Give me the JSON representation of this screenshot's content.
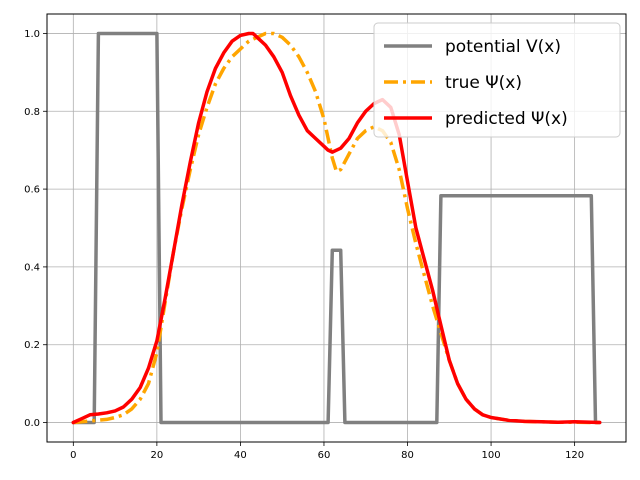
{
  "chart_data": {
    "type": "line",
    "title": "",
    "xlabel": "",
    "ylabel": "",
    "xlim": [
      -6.3,
      132.3
    ],
    "ylim": [
      -0.05,
      1.05
    ],
    "xticks": [
      0,
      20,
      40,
      60,
      80,
      100,
      120
    ],
    "yticks": [
      0.0,
      0.2,
      0.4,
      0.6,
      0.8,
      1.0
    ],
    "xtick_labels": [
      "0",
      "20",
      "40",
      "60",
      "80",
      "100",
      "120"
    ],
    "ytick_labels": [
      "0.0",
      "0.2",
      "0.4",
      "0.6",
      "0.8",
      "1.0"
    ],
    "grid": true,
    "legend_position": "upper right",
    "series": [
      {
        "name": "potential V(x)",
        "color": "#808080",
        "style": "solid",
        "x": [
          0,
          5,
          6,
          20,
          21,
          61,
          62,
          64,
          65,
          87,
          88,
          124,
          125,
          126
        ],
        "y": [
          0,
          0,
          1.0,
          1.0,
          0,
          0,
          0.443,
          0.443,
          0,
          0,
          0.583,
          0.583,
          0,
          0
        ]
      },
      {
        "name": "true Ψ(x)",
        "color": "#ffa500",
        "style": "dashdot",
        "x": [
          0,
          4,
          8,
          10,
          12,
          14,
          16,
          18,
          20,
          22,
          24,
          26,
          28,
          30,
          32,
          34,
          36,
          38,
          40,
          42,
          44,
          46,
          48,
          50,
          52,
          54,
          56,
          58,
          60,
          62,
          63,
          64,
          66,
          68,
          70,
          72,
          74,
          76,
          78,
          80,
          82,
          84,
          86,
          88,
          90,
          92,
          94,
          96,
          98,
          100,
          104,
          108,
          112,
          116,
          120,
          124,
          126
        ],
        "y": [
          0.0,
          0.004,
          0.008,
          0.013,
          0.02,
          0.035,
          0.06,
          0.1,
          0.18,
          0.31,
          0.44,
          0.55,
          0.65,
          0.74,
          0.81,
          0.87,
          0.91,
          0.94,
          0.96,
          0.98,
          0.99,
          1.0,
          1.0,
          0.99,
          0.97,
          0.94,
          0.9,
          0.85,
          0.78,
          0.68,
          0.645,
          0.65,
          0.69,
          0.73,
          0.75,
          0.76,
          0.75,
          0.72,
          0.65,
          0.55,
          0.46,
          0.38,
          0.3,
          0.23,
          0.16,
          0.1,
          0.06,
          0.035,
          0.02,
          0.013,
          0.006,
          0.003,
          0.002,
          0.001,
          0.001,
          0.0,
          0.0
        ]
      },
      {
        "name": "predicted Ψ(x)",
        "color": "#ff0000",
        "style": "solid",
        "x": [
          0,
          2,
          4,
          6,
          8,
          10,
          12,
          14,
          16,
          18,
          20,
          22,
          24,
          26,
          28,
          30,
          32,
          34,
          36,
          38,
          40,
          42,
          43,
          44,
          46,
          48,
          50,
          52,
          54,
          56,
          58,
          60,
          61,
          62,
          63,
          64,
          66,
          68,
          70,
          72,
          74,
          76,
          78,
          80,
          82,
          84,
          86,
          88,
          90,
          92,
          94,
          96,
          98,
          100,
          104,
          108,
          112,
          116,
          120,
          124,
          126
        ],
        "y": [
          0.0,
          0.01,
          0.02,
          0.022,
          0.025,
          0.03,
          0.04,
          0.06,
          0.09,
          0.14,
          0.21,
          0.32,
          0.44,
          0.56,
          0.67,
          0.77,
          0.85,
          0.91,
          0.95,
          0.98,
          0.995,
          1.0,
          1.0,
          0.99,
          0.97,
          0.94,
          0.9,
          0.84,
          0.79,
          0.75,
          0.73,
          0.71,
          0.7,
          0.695,
          0.7,
          0.705,
          0.73,
          0.77,
          0.8,
          0.82,
          0.83,
          0.81,
          0.74,
          0.62,
          0.5,
          0.42,
          0.34,
          0.25,
          0.16,
          0.1,
          0.06,
          0.035,
          0.02,
          0.013,
          0.006,
          0.003,
          0.002,
          0.001,
          0.002,
          0.001,
          0.0
        ]
      }
    ]
  }
}
